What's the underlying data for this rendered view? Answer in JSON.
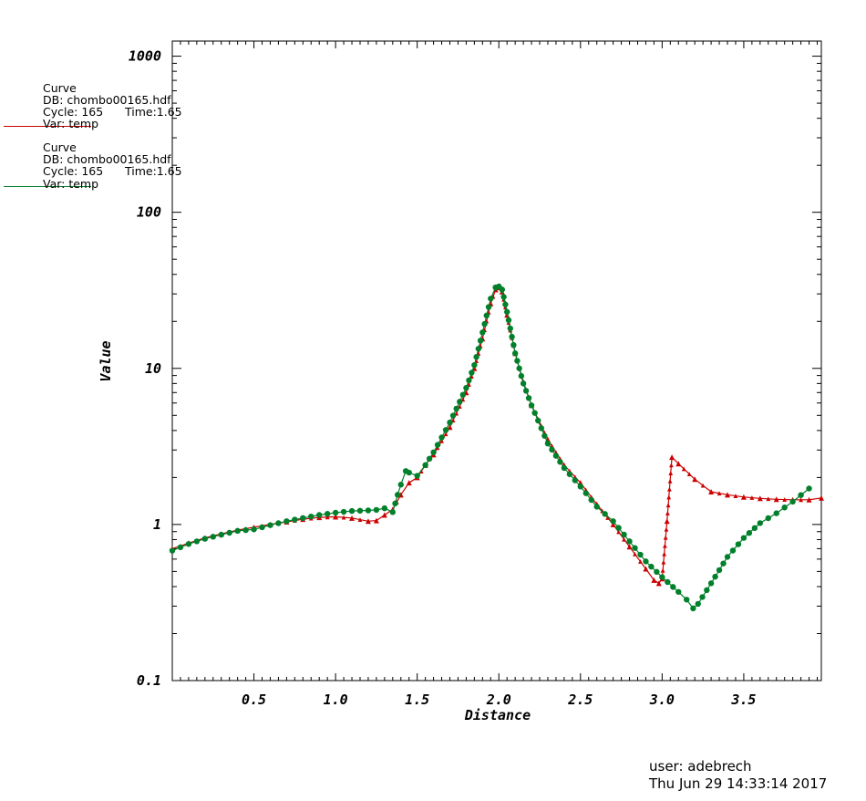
{
  "chart_data": {
    "type": "line",
    "xlabel": "Distance",
    "ylabel": "Value",
    "xlim": [
      0.0,
      3.975
    ],
    "ylim": [
      0.1,
      1250
    ],
    "yscale": "log",
    "grid": false,
    "x_ticks": [
      0.5,
      1.0,
      1.5,
      2.0,
      2.5,
      3.0,
      3.5
    ],
    "x_tick_labels": [
      "0.5",
      "1.0",
      "1.5",
      "2.0",
      "2.5",
      "3.0",
      "3.5"
    ],
    "y_ticks": [
      0.1,
      1,
      10,
      100,
      1000
    ],
    "y_tick_labels": [
      "0.1",
      "1",
      "10",
      "100",
      "1000"
    ],
    "legend": [
      {
        "title": "Curve",
        "db": "DB: chombo00165.hdf",
        "cycle": "Cycle: 165",
        "time": "Time:1.65",
        "var": "Var: temp",
        "color": "#cc0000"
      },
      {
        "title": "Curve",
        "db": "DB: chombo00165.hdf",
        "cycle": "Cycle: 165",
        "time": "Time:1.65",
        "var": "Var: temp",
        "color": "#00802b"
      }
    ],
    "series": [
      {
        "color": "#cc0000",
        "marker": "triangle",
        "x": [
          0.0,
          0.1,
          0.2,
          0.3,
          0.4,
          0.5,
          0.6,
          0.7,
          0.8,
          0.9,
          1.0,
          1.1,
          1.2,
          1.25,
          1.3,
          1.35,
          1.4,
          1.45,
          1.5,
          1.55,
          1.6,
          1.7,
          1.8,
          1.85,
          1.9,
          1.95,
          1.98,
          2.0,
          2.02,
          2.05,
          2.1,
          2.15,
          2.2,
          2.3,
          2.4,
          2.5,
          2.6,
          2.7,
          2.8,
          2.9,
          2.95,
          2.98,
          3.0,
          3.03,
          3.06,
          3.1,
          3.2,
          3.3,
          3.4,
          3.5,
          3.6,
          3.7,
          3.8,
          3.9,
          3.975
        ],
        "y": [
          0.7,
          0.76,
          0.82,
          0.87,
          0.92,
          0.96,
          1.0,
          1.04,
          1.08,
          1.11,
          1.12,
          1.1,
          1.05,
          1.06,
          1.15,
          1.25,
          1.55,
          1.85,
          2.0,
          2.4,
          2.8,
          4.2,
          7.0,
          10.0,
          15.5,
          26.0,
          32.0,
          33.0,
          31.0,
          22.0,
          12.5,
          8.2,
          5.8,
          3.5,
          2.4,
          1.85,
          1.35,
          1.0,
          0.72,
          0.52,
          0.44,
          0.42,
          0.45,
          1.05,
          2.7,
          2.45,
          1.95,
          1.62,
          1.55,
          1.5,
          1.47,
          1.45,
          1.44,
          1.44,
          1.48
        ]
      },
      {
        "color": "#00802b",
        "marker": "dot",
        "x": [
          0.0,
          0.1,
          0.2,
          0.3,
          0.4,
          0.5,
          0.6,
          0.7,
          0.8,
          0.9,
          1.0,
          1.1,
          1.2,
          1.25,
          1.3,
          1.35,
          1.38,
          1.4,
          1.43,
          1.45,
          1.5,
          1.55,
          1.6,
          1.7,
          1.8,
          1.85,
          1.9,
          1.95,
          1.98,
          2.0,
          2.02,
          2.05,
          2.1,
          2.15,
          2.2,
          2.3,
          2.4,
          2.5,
          2.6,
          2.7,
          2.8,
          2.9,
          3.0,
          3.1,
          3.15,
          3.19,
          3.22,
          3.3,
          3.4,
          3.5,
          3.6,
          3.7,
          3.8,
          3.9
        ],
        "y": [
          0.68,
          0.75,
          0.81,
          0.86,
          0.91,
          0.93,
          0.99,
          1.05,
          1.1,
          1.15,
          1.19,
          1.22,
          1.23,
          1.24,
          1.27,
          1.2,
          1.55,
          1.8,
          2.2,
          2.15,
          2.05,
          2.4,
          2.9,
          4.5,
          7.5,
          10.5,
          17.0,
          28.0,
          33.0,
          33.5,
          32.0,
          23.0,
          12.5,
          8.0,
          5.8,
          3.3,
          2.3,
          1.75,
          1.3,
          1.05,
          0.78,
          0.58,
          0.46,
          0.37,
          0.33,
          0.29,
          0.31,
          0.42,
          0.62,
          0.82,
          1.02,
          1.18,
          1.4,
          1.7
        ]
      }
    ]
  },
  "footer": {
    "user": "user: adebrech",
    "date": "Thu Jun 29 14:33:14 2017"
  }
}
